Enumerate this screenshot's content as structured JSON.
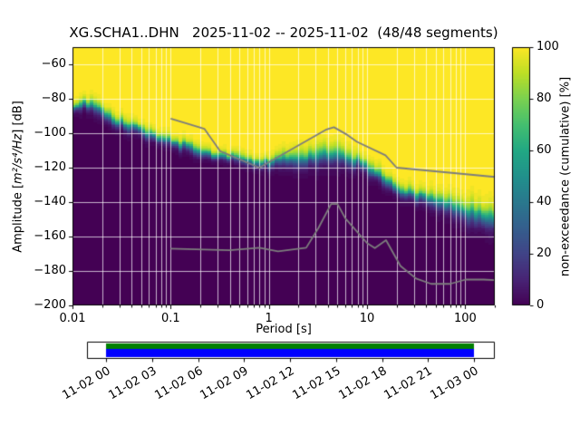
{
  "figure": {
    "title": "XG.SCHA1..DHN   2025-11-02 -- 2025-11-02  (48/48 segments)"
  },
  "axes": {
    "xlabel": "Period [s]",
    "ylabel_prefix": "Amplitude [",
    "ylabel_math": "m²/s⁴/Hz",
    "ylabel_suffix": "] [dB]",
    "x_tick_labels": [
      "0.01",
      "0.1",
      "1",
      "10",
      "100"
    ],
    "y_tick_labels": [
      "−60",
      "−80",
      "−100",
      "−120",
      "−140",
      "−160",
      "−180",
      "−200"
    ]
  },
  "colorbar": {
    "label": "non-exceedance (cumulative) [%]",
    "tick_labels": [
      "0",
      "20",
      "40",
      "60",
      "80",
      "100"
    ]
  },
  "coverage": {
    "tick_labels": [
      "11-02 00",
      "11-02 03",
      "11-02 06",
      "11-02 09",
      "11-02 12",
      "11-02 15",
      "11-02 18",
      "11-02 21",
      "11-03 00"
    ],
    "data_color_top": "#008000",
    "data_color_bottom": "#0000ff"
  },
  "chart_data": {
    "type": "heatmap",
    "title": "XG.SCHA1..DHN   2025-11-02 -- 2025-11-02  (48/48 segments)",
    "station": "XG.SCHA1..DHN",
    "date_range": "2025-11-02 -- 2025-11-02",
    "segments_used": 48,
    "segments_total": 48,
    "xlabel": "Period [s]",
    "ylabel": "Amplitude [m^2/s^4/Hz] [dB]",
    "xscale": "log",
    "xlim": [
      0.01,
      200
    ],
    "ylim": [
      -200,
      -50
    ],
    "x_ticks": [
      0.01,
      0.1,
      1,
      10,
      100
    ],
    "y_ticks": [
      -60,
      -80,
      -100,
      -120,
      -140,
      -160,
      -180,
      -200
    ],
    "grid": true,
    "colorbar": {
      "label": "non-exceedance (cumulative) [%]",
      "lim": [
        0,
        100
      ],
      "ticks": [
        0,
        20,
        40,
        60,
        80,
        100
      ],
      "colormap": "viridis"
    },
    "cumulative_transition": {
      "periods_s": [
        0.01,
        0.013,
        0.017,
        0.022,
        0.03,
        0.05,
        0.07,
        0.1,
        0.15,
        0.22,
        0.35,
        0.55,
        0.85,
        1.3,
        2.0,
        3.0,
        4.5,
        6.5,
        9.0,
        13.0,
        18.0,
        25.0,
        40.0,
        70.0,
        120.0,
        200.0
      ],
      "median_db": [
        -86,
        -83,
        -84,
        -89,
        -94,
        -99,
        -102,
        -105,
        -108,
        -111,
        -113.5,
        -115.5,
        -117,
        -116,
        -114.5,
        -113.5,
        -113,
        -114.5,
        -118,
        -124,
        -130,
        -134,
        -138,
        -142,
        -147,
        -151
      ],
      "half_width_db": [
        4,
        4.5,
        5,
        5,
        5,
        4.5,
        4.5,
        4.5,
        4.5,
        4,
        4,
        4,
        4.5,
        5.5,
        7,
        8,
        8,
        7,
        6,
        5.5,
        5,
        5,
        6,
        7,
        9,
        10
      ]
    },
    "noise_models": {
      "nhnm_db_by_period": [
        [
          0.1,
          -91.5
        ],
        [
          0.22,
          -97.4
        ],
        [
          0.32,
          -110.5
        ],
        [
          0.8,
          -120.0
        ],
        [
          3.8,
          -98.0
        ],
        [
          4.6,
          -96.5
        ],
        [
          6.3,
          -101.0
        ],
        [
          7.9,
          -105.0
        ],
        [
          15.4,
          -112.8
        ],
        [
          20.0,
          -120.0
        ],
        [
          200.0,
          -125.4
        ]
      ],
      "nlnm_db_by_period": [
        [
          0.1,
          -167.0
        ],
        [
          0.4,
          -168.0
        ],
        [
          0.8,
          -166.5
        ],
        [
          1.24,
          -168.6
        ],
        [
          2.4,
          -166.5
        ],
        [
          3.2,
          -155.0
        ],
        [
          4.3,
          -141.1
        ],
        [
          5.0,
          -141.1
        ],
        [
          6.0,
          -149.4
        ],
        [
          10.0,
          -163.8
        ],
        [
          12.0,
          -166.7
        ],
        [
          15.6,
          -162.1
        ],
        [
          21.9,
          -177.1
        ],
        [
          31.6,
          -184.4
        ],
        [
          45.0,
          -187.5
        ],
        [
          70.0,
          -187.5
        ],
        [
          101.0,
          -185.0
        ],
        [
          154.0,
          -185.0
        ],
        [
          200.0,
          -185.3
        ]
      ]
    },
    "coverage_timeline": {
      "ticks": [
        "11-02 00",
        "11-02 03",
        "11-02 06",
        "11-02 09",
        "11-02 12",
        "11-02 15",
        "11-02 18",
        "11-02 21",
        "11-03 00"
      ],
      "full_coverage": true
    }
  }
}
